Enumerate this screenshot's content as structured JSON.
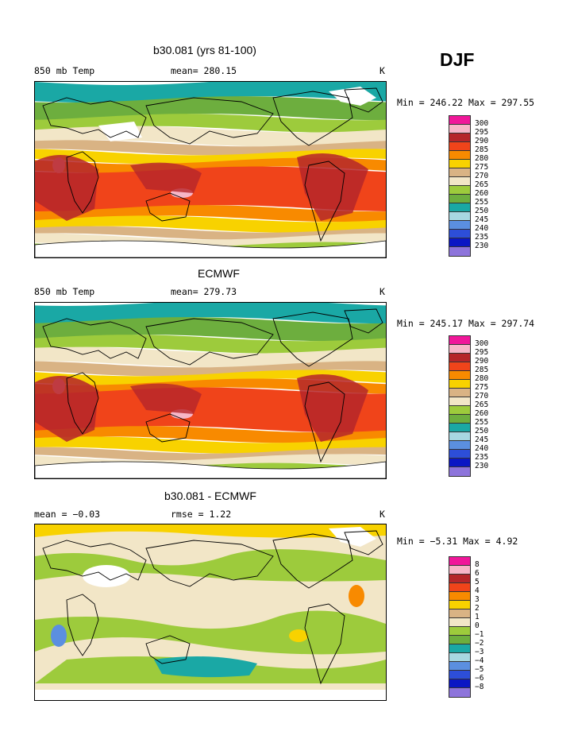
{
  "season": "DJF",
  "panels": [
    {
      "title": "b30.081 (yrs 81-100)",
      "left_label": "850 mb Temp",
      "center_label": "mean= 280.15",
      "unit": "K",
      "minmax": "Min = 246.22 Max = 297.55",
      "legend": [
        "300",
        "295",
        "290",
        "285",
        "280",
        "275",
        "270",
        "265",
        "260",
        "255",
        "250",
        "245",
        "240",
        "235",
        "230"
      ],
      "scheme": "abs"
    },
    {
      "title": "ECMWF",
      "left_label": "850 mb Temp",
      "center_label": "mean= 279.73",
      "unit": "K",
      "minmax": "Min = 245.17 Max = 297.74",
      "legend": [
        "300",
        "295",
        "290",
        "285",
        "280",
        "275",
        "270",
        "265",
        "260",
        "255",
        "250",
        "245",
        "240",
        "235",
        "230"
      ],
      "scheme": "abs"
    },
    {
      "title": "b30.081 - ECMWF",
      "left_label": "mean =  −0.03",
      "center_label": "rmse =   1.22",
      "unit": "K",
      "minmax": "Min =  −5.31 Max =   4.92",
      "legend": [
        "8",
        "6",
        "5",
        "4",
        "3",
        "2",
        "1",
        "0",
        "−1",
        "−2",
        "−3",
        "−4",
        "−5",
        "−6",
        "−8"
      ],
      "scheme": "diff"
    }
  ],
  "colors": [
    "#f0179a",
    "#f7b6c8",
    "#b5262a",
    "#f0441a",
    "#f88a00",
    "#f8d200",
    "#d9b384",
    "#f2e6c7",
    "#9dcb3c",
    "#6dae3e",
    "#1aa8a5",
    "#a7d7e1",
    "#5b8fe0",
    "#2d4ed8",
    "#0a16c4",
    "#8d74db"
  ]
}
